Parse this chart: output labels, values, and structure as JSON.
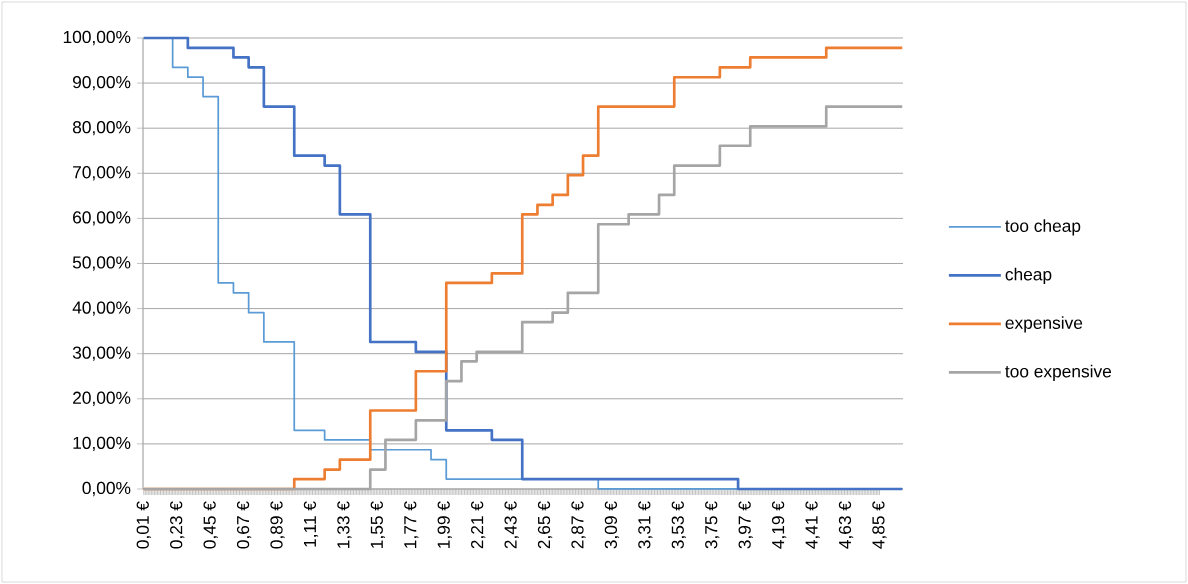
{
  "chart_data": {
    "type": "step",
    "xlim": [
      0.005,
      5.005
    ],
    "xticks": [
      {
        "value": 0.01,
        "label": "0,01 €"
      },
      {
        "value": 0.23,
        "label": "0,23 €"
      },
      {
        "value": 0.45,
        "label": "0,45 €"
      },
      {
        "value": 0.67,
        "label": "0,67 €"
      },
      {
        "value": 0.89,
        "label": "0,89 €"
      },
      {
        "value": 1.11,
        "label": "1,11 €"
      },
      {
        "value": 1.33,
        "label": "1,33 €"
      },
      {
        "value": 1.55,
        "label": "1,55 €"
      },
      {
        "value": 1.77,
        "label": "1,77 €"
      },
      {
        "value": 1.99,
        "label": "1,99 €"
      },
      {
        "value": 2.21,
        "label": "2,21 €"
      },
      {
        "value": 2.43,
        "label": "2,43 €"
      },
      {
        "value": 2.65,
        "label": "2,65 €"
      },
      {
        "value": 2.87,
        "label": "2,87 €"
      },
      {
        "value": 3.09,
        "label": "3,09 €"
      },
      {
        "value": 3.31,
        "label": "3,31 €"
      },
      {
        "value": 3.53,
        "label": "3,53 €"
      },
      {
        "value": 3.75,
        "label": "3,75 €"
      },
      {
        "value": 3.97,
        "label": "3,97 €"
      },
      {
        "value": 4.19,
        "label": "4,19 €"
      },
      {
        "value": 4.41,
        "label": "4,41 €"
      },
      {
        "value": 4.63,
        "label": "4,63 €"
      },
      {
        "value": 4.85,
        "label": "4,85 €"
      }
    ],
    "ylim": [
      0,
      100
    ],
    "yticks": [
      {
        "value": 0,
        "label": "0,00%"
      },
      {
        "value": 10,
        "label": "10,00%"
      },
      {
        "value": 20,
        "label": "20,00%"
      },
      {
        "value": 30,
        "label": "30,00%"
      },
      {
        "value": 40,
        "label": "40,00%"
      },
      {
        "value": 50,
        "label": "50,00%"
      },
      {
        "value": 60,
        "label": "60,00%"
      },
      {
        "value": 70,
        "label": "70,00%"
      },
      {
        "value": 80,
        "label": "80,00%"
      },
      {
        "value": 90,
        "label": "90,00%"
      },
      {
        "value": 100,
        "label": "100,00%"
      }
    ],
    "grid": "y",
    "legend": "right",
    "series": [
      {
        "name": "too cheap",
        "color": "#5b9bd5",
        "x": [
          0.01,
          0.2,
          0.3,
          0.4,
          0.5,
          0.6,
          0.7,
          0.8,
          1.0,
          1.2,
          1.5,
          1.9,
          2.0,
          3.0,
          5.0
        ],
        "values": [
          100,
          93.5,
          91.3,
          87.0,
          45.7,
          43.5,
          39.1,
          32.6,
          13.0,
          10.9,
          8.7,
          6.5,
          2.2,
          0,
          0
        ]
      },
      {
        "name": "cheap",
        "color": "#4472c4",
        "x": [
          0.01,
          0.3,
          0.6,
          0.7,
          0.8,
          1.0,
          1.2,
          1.3,
          1.5,
          1.8,
          2.0,
          2.3,
          2.5,
          3.92,
          5.0
        ],
        "values": [
          100,
          97.8,
          95.7,
          93.5,
          84.8,
          73.9,
          71.7,
          60.9,
          32.6,
          30.4,
          13.0,
          10.9,
          2.2,
          0,
          0
        ]
      },
      {
        "name": "expensive",
        "color": "#ed7d31",
        "x": [
          0.01,
          1.0,
          1.2,
          1.3,
          1.5,
          1.8,
          2.0,
          2.3,
          2.5,
          2.6,
          2.7,
          2.8,
          2.9,
          3.0,
          3.5,
          3.8,
          4.0,
          4.5,
          5.0
        ],
        "values": [
          0,
          2.2,
          4.3,
          6.5,
          17.4,
          26.1,
          45.7,
          47.8,
          60.9,
          63.0,
          65.2,
          69.6,
          73.9,
          84.8,
          91.3,
          93.5,
          95.7,
          97.8,
          97.8
        ]
      },
      {
        "name": "too expensive",
        "color": "#a5a5a5",
        "x": [
          0.01,
          1.5,
          1.6,
          1.8,
          2.0,
          2.1,
          2.2,
          2.5,
          2.7,
          2.8,
          3.0,
          3.2,
          3.4,
          3.5,
          3.8,
          4.0,
          4.5,
          5.0
        ],
        "values": [
          0,
          4.3,
          10.9,
          15.2,
          23.9,
          28.3,
          30.4,
          37.0,
          39.1,
          43.5,
          58.7,
          60.9,
          65.2,
          71.7,
          76.1,
          80.4,
          84.8,
          84.8
        ]
      }
    ]
  }
}
